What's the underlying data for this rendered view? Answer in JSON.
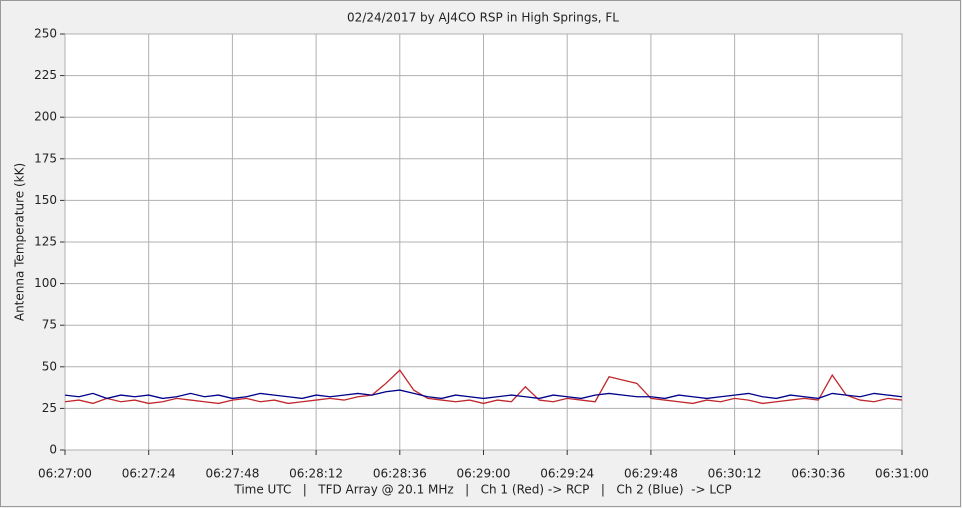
{
  "chart_data": {
    "type": "line",
    "title": "02/24/2017  by  AJ4CO RSP  in  High Springs, FL",
    "ylabel": "Antenna Temperature (kK)",
    "xlabel": "Time UTC   |   TFD Array @ 20.1 MHz   |   Ch 1 (Red) -> RCP   |   Ch 2 (Blue)  -> LCP",
    "x": [
      "06:27:00",
      "06:27:04",
      "06:27:08",
      "06:27:12",
      "06:27:16",
      "06:27:20",
      "06:27:24",
      "06:27:28",
      "06:27:32",
      "06:27:36",
      "06:27:40",
      "06:27:44",
      "06:27:48",
      "06:27:52",
      "06:27:56",
      "06:28:00",
      "06:28:04",
      "06:28:08",
      "06:28:12",
      "06:28:16",
      "06:28:20",
      "06:28:24",
      "06:28:28",
      "06:28:32",
      "06:28:36",
      "06:28:40",
      "06:28:44",
      "06:28:48",
      "06:28:52",
      "06:28:56",
      "06:29:00",
      "06:29:04",
      "06:29:08",
      "06:29:12",
      "06:29:16",
      "06:29:20",
      "06:29:24",
      "06:29:28",
      "06:29:32",
      "06:29:36",
      "06:29:40",
      "06:29:44",
      "06:29:48",
      "06:29:52",
      "06:29:56",
      "06:30:00",
      "06:30:04",
      "06:30:08",
      "06:30:12",
      "06:30:16",
      "06:30:20",
      "06:30:24",
      "06:30:28",
      "06:30:32",
      "06:30:36",
      "06:30:40",
      "06:30:44",
      "06:30:48",
      "06:30:52",
      "06:30:56",
      "06:31:00"
    ],
    "series": [
      {
        "color": "#c0282d",
        "values": [
          29,
          30,
          28,
          31,
          29,
          30,
          28,
          29,
          31,
          30,
          29,
          28,
          30,
          31,
          29,
          30,
          28,
          29,
          30,
          31,
          30,
          32,
          33,
          40,
          48,
          36,
          31,
          30,
          29,
          30,
          28,
          30,
          29,
          38,
          30,
          29,
          31,
          30,
          29,
          44,
          42,
          40,
          31,
          30,
          29,
          28,
          30,
          29,
          31,
          30,
          28,
          29,
          30,
          31,
          30,
          45,
          33,
          30,
          29,
          31,
          30
        ]
      },
      {
        "color": "#00008b",
        "values": [
          33,
          32,
          34,
          31,
          33,
          32,
          33,
          31,
          32,
          34,
          32,
          33,
          31,
          32,
          34,
          33,
          32,
          31,
          33,
          32,
          33,
          34,
          33,
          35,
          36,
          34,
          32,
          31,
          33,
          32,
          31,
          32,
          33,
          32,
          31,
          33,
          32,
          31,
          33,
          34,
          33,
          32,
          32,
          31,
          33,
          32,
          31,
          32,
          33,
          34,
          32,
          31,
          33,
          32,
          31,
          34,
          33,
          32,
          34,
          33,
          32
        ]
      }
    ],
    "xlim": [
      "06:27:00",
      "06:31:00"
    ],
    "xticks": [
      "06:27:00",
      "06:27:24",
      "06:27:48",
      "06:28:12",
      "06:28:36",
      "06:29:00",
      "06:29:24",
      "06:29:48",
      "06:30:12",
      "06:30:36",
      "06:31:00"
    ],
    "ylim": [
      0,
      250
    ],
    "yticks": [
      0,
      25,
      50,
      75,
      100,
      125,
      150,
      175,
      200,
      225,
      250
    ],
    "grid": true
  }
}
